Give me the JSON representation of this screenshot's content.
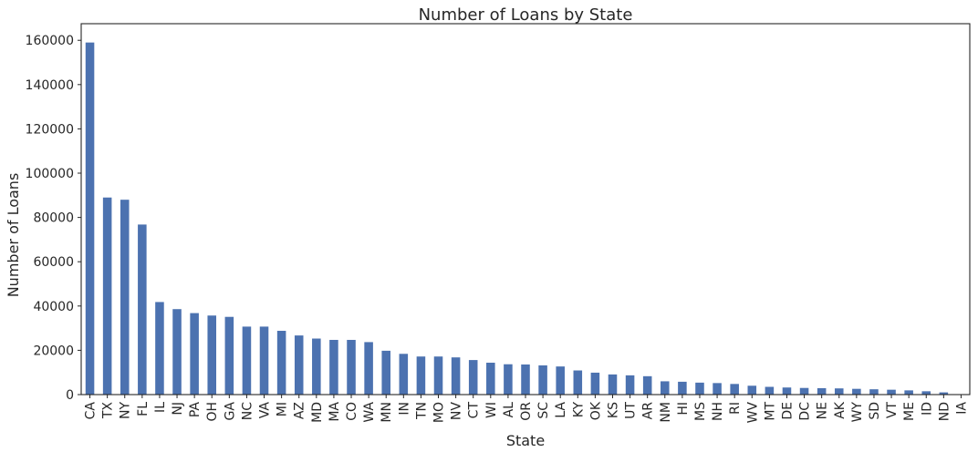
{
  "chart_data": {
    "type": "bar",
    "title": "Number of Loans by State",
    "xlabel": "State",
    "ylabel": "Number of Loans",
    "categories": [
      "CA",
      "TX",
      "NY",
      "FL",
      "IL",
      "NJ",
      "PA",
      "OH",
      "GA",
      "NC",
      "VA",
      "MI",
      "AZ",
      "MD",
      "MA",
      "CO",
      "WA",
      "MN",
      "IN",
      "TN",
      "MO",
      "NV",
      "CT",
      "WI",
      "AL",
      "OR",
      "SC",
      "LA",
      "KY",
      "OK",
      "KS",
      "UT",
      "AR",
      "NM",
      "HI",
      "MS",
      "NH",
      "RI",
      "WV",
      "MT",
      "DE",
      "DC",
      "NE",
      "AK",
      "WY",
      "SD",
      "VT",
      "ME",
      "ID",
      "ND",
      "IA"
    ],
    "values": [
      159000,
      89000,
      88000,
      76800,
      41800,
      38600,
      36800,
      35700,
      35100,
      30700,
      30700,
      28800,
      26700,
      25300,
      24700,
      24700,
      23700,
      19800,
      18400,
      17200,
      17200,
      16800,
      15600,
      14400,
      13700,
      13600,
      13200,
      12700,
      10900,
      9900,
      9100,
      8700,
      8300,
      6000,
      5800,
      5400,
      5200,
      4800,
      4000,
      3500,
      3200,
      3000,
      2900,
      2800,
      2600,
      2400,
      2200,
      1900,
      1500,
      1000,
      0
    ],
    "ylim": [
      0,
      167500
    ],
    "yticks": [
      0,
      20000,
      40000,
      60000,
      80000,
      100000,
      120000,
      140000,
      160000
    ],
    "grid": false,
    "bar_color": "#4c72b0"
  }
}
